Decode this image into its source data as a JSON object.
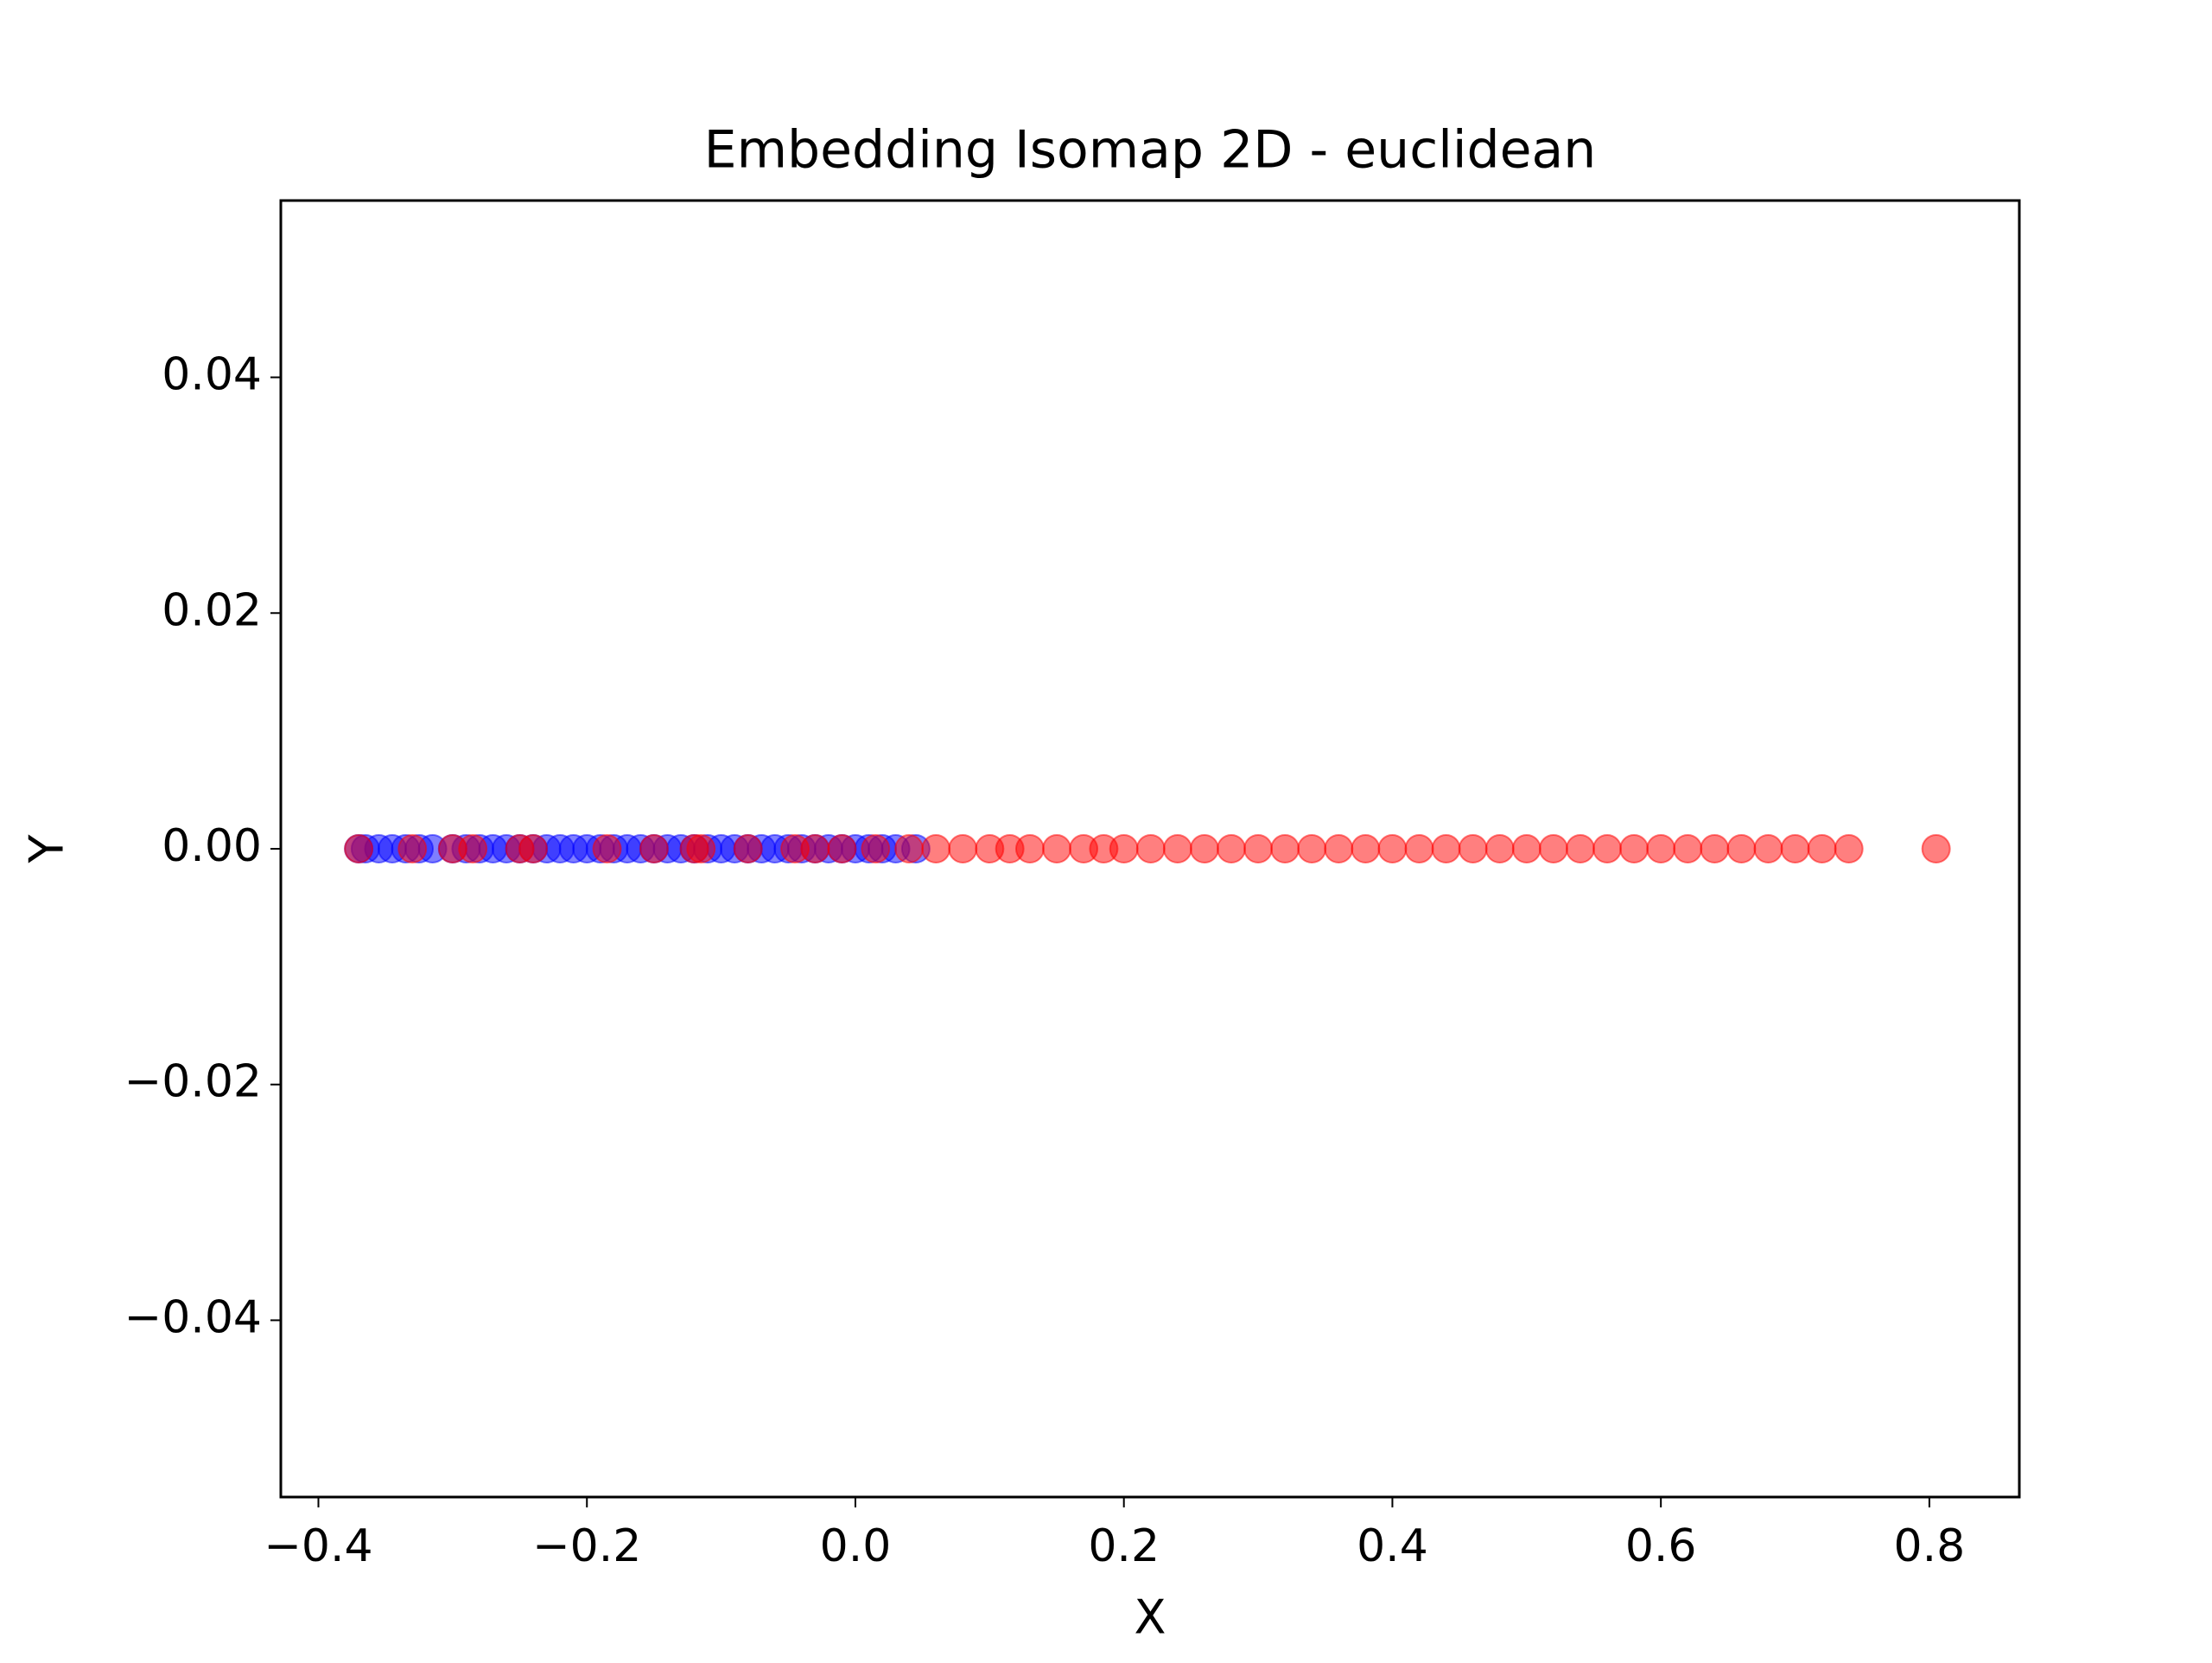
{
  "chart_data": {
    "type": "scatter",
    "title": "Embedding Isomap 2D - euclidean",
    "x_label": "X",
    "y_label": "Y",
    "xlim": [
      -0.428,
      0.867
    ],
    "ylim": [
      -0.055,
      0.055
    ],
    "xticks": [
      {
        "value": -0.4,
        "label": "−0.4"
      },
      {
        "value": -0.2,
        "label": "−0.2"
      },
      {
        "value": 0,
        "label": "0.0"
      },
      0.2,
      0.4,
      0.6,
      0.8
    ],
    "yticks": [
      {
        "value": -0.04,
        "label": "−0.04"
      },
      {
        "value": -0.02,
        "label": "−0.02"
      },
      {
        "value": 0,
        "label": "0.00"
      },
      0.02,
      0.04
    ],
    "series": [
      {
        "color": "#0000ff",
        "alpha": 0.5,
        "x": [
          -0.37,
          -0.365,
          -0.355,
          -0.345,
          -0.335,
          -0.325,
          -0.315,
          -0.3,
          -0.29,
          -0.28,
          -0.27,
          -0.26,
          -0.25,
          -0.24,
          -0.23,
          -0.22,
          -0.21,
          -0.2,
          -0.19,
          -0.18,
          -0.17,
          -0.16,
          -0.15,
          -0.14,
          -0.13,
          -0.12,
          -0.11,
          -0.1,
          -0.09,
          -0.08,
          -0.07,
          -0.06,
          -0.05,
          -0.04,
          -0.03,
          -0.02,
          -0.01,
          0.0,
          0.01,
          0.02,
          0.03,
          0.045
        ],
        "y": [
          0,
          0,
          0,
          0,
          0,
          0,
          0,
          0,
          0,
          0,
          0,
          0,
          0,
          0,
          0,
          0,
          0,
          0,
          0,
          0,
          0,
          0,
          0,
          0,
          0,
          0,
          0,
          0,
          0,
          0,
          0,
          0,
          0,
          0,
          0,
          0,
          0,
          0,
          0,
          0,
          0,
          0
        ]
      },
      {
        "color": "#ff0000",
        "alpha": 0.5,
        "x": [
          -0.37,
          -0.33,
          -0.3,
          -0.285,
          -0.25,
          -0.24,
          -0.185,
          -0.15,
          -0.12,
          -0.115,
          -0.08,
          -0.045,
          -0.03,
          -0.01,
          0.015,
          0.04,
          0.06,
          0.08,
          0.1,
          0.115,
          0.13,
          0.15,
          0.17,
          0.185,
          0.2,
          0.22,
          0.24,
          0.26,
          0.28,
          0.3,
          0.32,
          0.34,
          0.36,
          0.38,
          0.4,
          0.42,
          0.44,
          0.46,
          0.48,
          0.5,
          0.52,
          0.54,
          0.56,
          0.58,
          0.6,
          0.62,
          0.64,
          0.66,
          0.68,
          0.7,
          0.72,
          0.74,
          0.805
        ],
        "y": [
          0,
          0,
          0,
          0,
          0,
          0,
          0,
          0,
          0,
          0,
          0,
          0,
          0,
          0,
          0,
          0,
          0,
          0,
          0,
          0,
          0,
          0,
          0,
          0,
          0,
          0,
          0,
          0,
          0,
          0,
          0,
          0,
          0,
          0,
          0,
          0,
          0,
          0,
          0,
          0,
          0,
          0,
          0,
          0,
          0,
          0,
          0,
          0,
          0,
          0,
          0,
          0,
          0
        ]
      }
    ]
  }
}
